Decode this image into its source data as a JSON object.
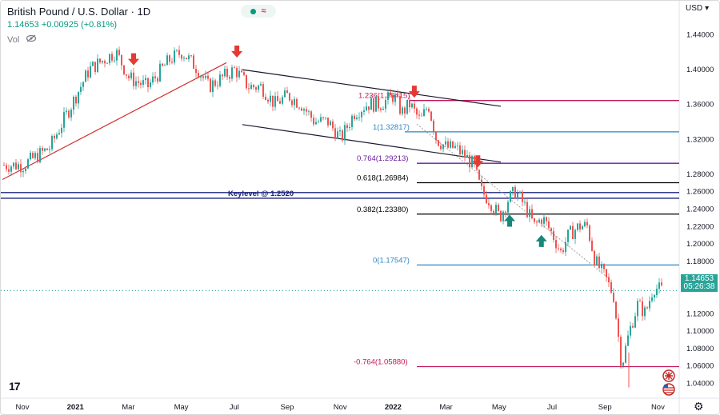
{
  "header": {
    "title": "British Pound / U.S. Dollar · 1D",
    "quote": "1.14653 +0.00925 (+0.81%)",
    "vol_label": "Vol",
    "currency": "USD"
  },
  "icons": [
    "eye-off-icon",
    "status-dot-icon",
    "wave-icon",
    "chevron-down-icon",
    "gbp-flag-icon",
    "usd-flag-icon",
    "gear-icon",
    "tv-logo-icon"
  ],
  "current_price": {
    "value": "1.14653",
    "countdown": "05:26:38"
  },
  "colors": {
    "up": "#26a69a",
    "down": "#ef5350",
    "support_blue": "#2e86c1",
    "fib_black": "#000000",
    "fib_purple": "#6a1b9a",
    "fib_red": "#c2185b",
    "keylevel_navy": "#1a237e",
    "arrow_red": "#e53935",
    "arrow_teal": "#16877a",
    "trend_red": "#d32f2f"
  },
  "chart_data": {
    "type": "line",
    "symbol": "GBPUSD",
    "timeframe": "1D",
    "ylim": [
      1.03,
      1.455
    ],
    "yticks": [
      1.44,
      1.4,
      1.36,
      1.32,
      1.28,
      1.26,
      1.24,
      1.22,
      1.2,
      1.18,
      1.16,
      1.12,
      1.1,
      1.08,
      1.06,
      1.04
    ],
    "ytick_labels": [
      "1.44000",
      "1.40000",
      "1.36000",
      "1.32000",
      "1.28000",
      "1.26000",
      "1.24000",
      "1.22000",
      "1.20000",
      "1.18000",
      "1.16000",
      "1.12000",
      "1.10000",
      "1.08000",
      "1.06000",
      "1.04000"
    ],
    "xtick_labels": [
      "Nov",
      "2021",
      "Mar",
      "May",
      "Jul",
      "Sep",
      "Nov",
      "2022",
      "Mar",
      "May",
      "Jul",
      "Sep",
      "Nov"
    ],
    "xtick_months": [
      0,
      2,
      4,
      6,
      8,
      10,
      12,
      14,
      16,
      18,
      20,
      22,
      24
    ],
    "price_path": {
      "description_months_from_oct2020": [
        0.0,
        1.0,
        2.0,
        2.5,
        3.0,
        3.5,
        4.0,
        4.7,
        5.5,
        6.0,
        6.6,
        7.0,
        7.5,
        8.0,
        8.5,
        9.0,
        9.5,
        10.0,
        10.5,
        11.0,
        11.5,
        12.0,
        12.5,
        13.0,
        13.5,
        14.0,
        14.3,
        14.6,
        15.0,
        15.3,
        15.6,
        16.0,
        16.3,
        16.7,
        17.0,
        17.3,
        17.6,
        18.0,
        18.3,
        18.6,
        19.0,
        19.3,
        19.6,
        20.0,
        20.3,
        20.6,
        21.0,
        21.3,
        21.6,
        22.0,
        22.3,
        22.6,
        22.9,
        23.2,
        23.5,
        23.8,
        24.1
      ],
      "close": [
        1.29,
        1.31,
        1.37,
        1.4,
        1.41,
        1.42,
        1.39,
        1.38,
        1.41,
        1.42,
        1.4,
        1.38,
        1.39,
        1.4,
        1.38,
        1.38,
        1.36,
        1.37,
        1.36,
        1.34,
        1.34,
        1.32,
        1.35,
        1.36,
        1.36,
        1.37,
        1.35,
        1.36,
        1.34,
        1.36,
        1.32,
        1.31,
        1.31,
        1.3,
        1.29,
        1.26,
        1.25,
        1.23,
        1.25,
        1.26,
        1.24,
        1.22,
        1.23,
        1.21,
        1.19,
        1.21,
        1.22,
        1.22,
        1.18,
        1.16,
        1.14,
        1.06,
        1.1,
        1.13,
        1.12,
        1.15,
        1.14653
      ]
    },
    "horizontal_levels": [
      {
        "label": "1.236(1.36415)",
        "value": 1.36415,
        "color": "fib_red"
      },
      {
        "label": "1(1.32817)",
        "value": 1.32817,
        "color": "support_blue"
      },
      {
        "label": "0.764(1.29213)",
        "value": 1.29213,
        "color": "fib_purple"
      },
      {
        "label": "0.618(1.26984)",
        "value": 1.26984,
        "color": "fib_black"
      },
      {
        "label": "Keylevel @ 1.2520",
        "value": 1.252,
        "color": "keylevel_navy"
      },
      {
        "label": "0.382(1.23380)",
        "value": 1.2338,
        "color": "fib_black"
      },
      {
        "label": "0(1.17547)",
        "value": 1.17547,
        "color": "support_blue"
      },
      {
        "label": "-0.764(1.05880)",
        "value": 1.0588,
        "color": "fib_red"
      }
    ],
    "annotations": {
      "down_arrows": [
        4.2,
        8.1,
        14.8,
        17.2
      ],
      "up_arrows": [
        18.4,
        19.6
      ]
    }
  }
}
